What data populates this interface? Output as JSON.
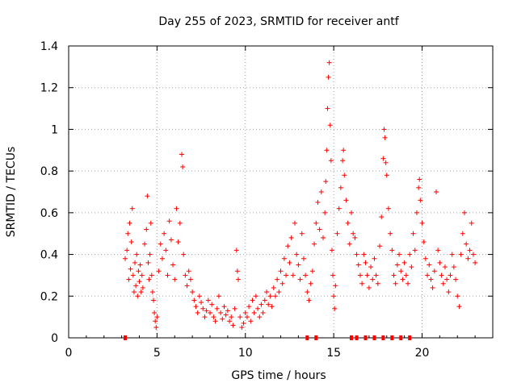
{
  "chart_data": {
    "type": "scatter",
    "title": "Day 255 of 2023, SRMTID for receiver antf",
    "xlabel": "GPS time / hours",
    "ylabel": "SRMTID / TECUs",
    "xlim": [
      0,
      24
    ],
    "ylim": [
      0,
      1.4
    ],
    "xticks": [
      0,
      5,
      10,
      15,
      20
    ],
    "yticks": [
      0,
      0.2,
      0.4,
      0.6,
      0.8,
      1,
      1.2,
      1.4
    ],
    "xtick_labels": [
      "0",
      "5",
      "10",
      "15",
      "20"
    ],
    "ytick_labels": [
      "0",
      "0.2",
      "0.4",
      "0.6",
      "0.8",
      "1",
      "1.2",
      "1.4"
    ],
    "grid": true,
    "marker": "+",
    "series_color": "#ff0000",
    "points": [
      [
        3.2,
        0.38
      ],
      [
        3.3,
        0.42
      ],
      [
        3.35,
        0.5
      ],
      [
        3.4,
        0.28
      ],
      [
        3.45,
        0.55
      ],
      [
        3.5,
        0.33
      ],
      [
        3.55,
        0.46
      ],
      [
        3.6,
        0.62
      ],
      [
        3.65,
        0.3
      ],
      [
        3.7,
        0.22
      ],
      [
        3.75,
        0.36
      ],
      [
        3.8,
        0.25
      ],
      [
        3.85,
        0.4
      ],
      [
        3.9,
        0.2
      ],
      [
        3.95,
        0.32
      ],
      [
        4.0,
        0.27
      ],
      [
        4.05,
        0.35
      ],
      [
        4.1,
        0.22
      ],
      [
        4.15,
        0.3
      ],
      [
        4.2,
        0.24
      ],
      [
        4.3,
        0.45
      ],
      [
        4.4,
        0.52
      ],
      [
        4.45,
        0.68
      ],
      [
        4.5,
        0.36
      ],
      [
        4.55,
        0.28
      ],
      [
        4.6,
        0.4
      ],
      [
        4.65,
        0.55
      ],
      [
        4.7,
        0.3
      ],
      [
        4.75,
        0.22
      ],
      [
        4.8,
        0.18
      ],
      [
        4.85,
        0.12
      ],
      [
        4.9,
        0.08
      ],
      [
        4.95,
        0.05
      ],
      [
        5.0,
        0.1
      ],
      [
        5.1,
        0.32
      ],
      [
        5.2,
        0.45
      ],
      [
        5.3,
        0.38
      ],
      [
        5.4,
        0.5
      ],
      [
        5.5,
        0.42
      ],
      [
        5.6,
        0.3
      ],
      [
        5.7,
        0.56
      ],
      [
        5.8,
        0.47
      ],
      [
        5.9,
        0.35
      ],
      [
        6.0,
        0.28
      ],
      [
        6.1,
        0.62
      ],
      [
        6.2,
        0.46
      ],
      [
        6.3,
        0.55
      ],
      [
        6.4,
        0.88
      ],
      [
        6.45,
        0.82
      ],
      [
        6.5,
        0.4
      ],
      [
        6.6,
        0.3
      ],
      [
        6.7,
        0.25
      ],
      [
        6.8,
        0.32
      ],
      [
        6.9,
        0.28
      ],
      [
        7.0,
        0.22
      ],
      [
        7.1,
        0.18
      ],
      [
        7.2,
        0.15
      ],
      [
        7.3,
        0.12
      ],
      [
        7.4,
        0.2
      ],
      [
        7.5,
        0.17
      ],
      [
        7.6,
        0.14
      ],
      [
        7.7,
        0.1
      ],
      [
        7.8,
        0.13
      ],
      [
        7.9,
        0.18
      ],
      [
        8.0,
        0.12
      ],
      [
        8.1,
        0.16
      ],
      [
        8.2,
        0.1
      ],
      [
        8.3,
        0.08
      ],
      [
        8.4,
        0.14
      ],
      [
        8.5,
        0.2
      ],
      [
        8.6,
        0.12
      ],
      [
        8.7,
        0.09
      ],
      [
        8.8,
        0.15
      ],
      [
        8.9,
        0.11
      ],
      [
        9.0,
        0.13
      ],
      [
        9.1,
        0.08
      ],
      [
        9.2,
        0.1
      ],
      [
        9.3,
        0.06
      ],
      [
        9.4,
        0.14
      ],
      [
        9.5,
        0.42
      ],
      [
        9.55,
        0.32
      ],
      [
        9.6,
        0.28
      ],
      [
        9.7,
        0.1
      ],
      [
        9.8,
        0.05
      ],
      [
        9.9,
        0.07
      ],
      [
        10.0,
        0.12
      ],
      [
        10.1,
        0.1
      ],
      [
        10.2,
        0.15
      ],
      [
        10.3,
        0.08
      ],
      [
        10.4,
        0.18
      ],
      [
        10.5,
        0.12
      ],
      [
        10.6,
        0.2
      ],
      [
        10.7,
        0.14
      ],
      [
        10.8,
        0.1
      ],
      [
        10.9,
        0.16
      ],
      [
        11.0,
        0.12
      ],
      [
        11.1,
        0.18
      ],
      [
        11.2,
        0.22
      ],
      [
        11.3,
        0.16
      ],
      [
        11.4,
        0.2
      ],
      [
        11.5,
        0.15
      ],
      [
        11.6,
        0.24
      ],
      [
        11.7,
        0.2
      ],
      [
        11.8,
        0.28
      ],
      [
        11.9,
        0.22
      ],
      [
        12.0,
        0.32
      ],
      [
        12.1,
        0.26
      ],
      [
        12.2,
        0.38
      ],
      [
        12.3,
        0.3
      ],
      [
        12.4,
        0.44
      ],
      [
        12.5,
        0.36
      ],
      [
        12.6,
        0.48
      ],
      [
        12.7,
        0.3
      ],
      [
        12.8,
        0.55
      ],
      [
        12.9,
        0.4
      ],
      [
        13.0,
        0.35
      ],
      [
        13.1,
        0.28
      ],
      [
        13.2,
        0.5
      ],
      [
        13.3,
        0.38
      ],
      [
        13.4,
        0.3
      ],
      [
        13.5,
        0.22
      ],
      [
        13.6,
        0.18
      ],
      [
        13.7,
        0.26
      ],
      [
        13.8,
        0.32
      ],
      [
        13.9,
        0.45
      ],
      [
        14.0,
        0.55
      ],
      [
        14.1,
        0.65
      ],
      [
        14.2,
        0.52
      ],
      [
        14.3,
        0.7
      ],
      [
        14.4,
        0.48
      ],
      [
        14.5,
        0.6
      ],
      [
        14.55,
        0.75
      ],
      [
        14.6,
        0.9
      ],
      [
        14.65,
        1.1
      ],
      [
        14.7,
        1.25
      ],
      [
        14.75,
        1.32
      ],
      [
        14.8,
        1.02
      ],
      [
        14.85,
        0.85
      ],
      [
        14.9,
        0.42
      ],
      [
        14.95,
        0.3
      ],
      [
        15.0,
        0.2
      ],
      [
        15.05,
        0.14
      ],
      [
        15.1,
        0.25
      ],
      [
        15.2,
        0.5
      ],
      [
        15.3,
        0.62
      ],
      [
        15.4,
        0.72
      ],
      [
        15.5,
        0.85
      ],
      [
        15.55,
        0.9
      ],
      [
        15.6,
        0.78
      ],
      [
        15.7,
        0.66
      ],
      [
        15.8,
        0.55
      ],
      [
        15.9,
        0.45
      ],
      [
        16.0,
        0.6
      ],
      [
        16.1,
        0.5
      ],
      [
        16.2,
        0.48
      ],
      [
        16.3,
        0.4
      ],
      [
        16.4,
        0.35
      ],
      [
        16.5,
        0.3
      ],
      [
        16.6,
        0.26
      ],
      [
        16.7,
        0.4
      ],
      [
        16.8,
        0.36
      ],
      [
        16.9,
        0.3
      ],
      [
        17.0,
        0.24
      ],
      [
        17.1,
        0.34
      ],
      [
        17.2,
        0.28
      ],
      [
        17.3,
        0.38
      ],
      [
        17.4,
        0.3
      ],
      [
        17.5,
        0.26
      ],
      [
        17.6,
        0.44
      ],
      [
        17.7,
        0.58
      ],
      [
        17.8,
        0.86
      ],
      [
        17.85,
        1.0
      ],
      [
        17.9,
        0.96
      ],
      [
        17.95,
        0.84
      ],
      [
        18.0,
        0.78
      ],
      [
        18.1,
        0.62
      ],
      [
        18.2,
        0.5
      ],
      [
        18.3,
        0.42
      ],
      [
        18.4,
        0.3
      ],
      [
        18.5,
        0.26
      ],
      [
        18.6,
        0.35
      ],
      [
        18.7,
        0.4
      ],
      [
        18.8,
        0.32
      ],
      [
        18.9,
        0.28
      ],
      [
        19.0,
        0.36
      ],
      [
        19.1,
        0.3
      ],
      [
        19.2,
        0.26
      ],
      [
        19.3,
        0.4
      ],
      [
        19.4,
        0.34
      ],
      [
        19.5,
        0.5
      ],
      [
        19.6,
        0.42
      ],
      [
        19.7,
        0.6
      ],
      [
        19.8,
        0.72
      ],
      [
        19.85,
        0.76
      ],
      [
        19.9,
        0.66
      ],
      [
        20.0,
        0.55
      ],
      [
        20.1,
        0.46
      ],
      [
        20.2,
        0.38
      ],
      [
        20.3,
        0.3
      ],
      [
        20.4,
        0.35
      ],
      [
        20.5,
        0.28
      ],
      [
        20.6,
        0.24
      ],
      [
        20.7,
        0.32
      ],
      [
        20.8,
        0.7
      ],
      [
        20.9,
        0.42
      ],
      [
        21.0,
        0.36
      ],
      [
        21.1,
        0.3
      ],
      [
        21.2,
        0.26
      ],
      [
        21.3,
        0.34
      ],
      [
        21.4,
        0.28
      ],
      [
        21.5,
        0.22
      ],
      [
        21.6,
        0.3
      ],
      [
        21.7,
        0.4
      ],
      [
        21.8,
        0.34
      ],
      [
        21.9,
        0.28
      ],
      [
        22.0,
        0.2
      ],
      [
        22.1,
        0.15
      ],
      [
        22.2,
        0.4
      ],
      [
        22.3,
        0.5
      ],
      [
        22.4,
        0.6
      ],
      [
        22.5,
        0.45
      ],
      [
        22.6,
        0.38
      ],
      [
        22.7,
        0.42
      ],
      [
        22.8,
        0.55
      ],
      [
        22.9,
        0.4
      ],
      [
        23.0,
        0.36
      ]
    ],
    "zero_markers_x": [
      3.2,
      13.5,
      14.0,
      16.0,
      16.3,
      16.8,
      17.3,
      17.8,
      18.3,
      18.8,
      19.3
    ]
  }
}
